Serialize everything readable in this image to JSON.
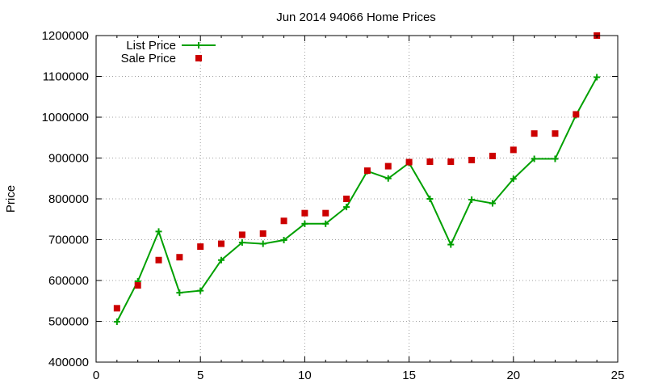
{
  "chart_data": {
    "type": "line",
    "title": "Jun 2014 94066 Home Prices",
    "xlabel": "",
    "ylabel": "Price",
    "xlim": [
      0,
      25
    ],
    "ylim": [
      400000,
      1200000
    ],
    "x_ticks": [
      0,
      5,
      10,
      15,
      20,
      25
    ],
    "y_ticks": [
      400000,
      500000,
      600000,
      700000,
      800000,
      900000,
      1000000,
      1100000,
      1200000
    ],
    "grid": true,
    "legend_position": "top-left",
    "series": [
      {
        "name": "List Price",
        "style": "line-with-plus-markers",
        "color": "#00a000",
        "x": [
          1,
          2,
          3,
          4,
          5,
          6,
          7,
          8,
          9,
          10,
          11,
          12,
          13,
          14,
          15,
          16,
          17,
          18,
          19,
          20,
          21,
          22,
          23,
          24
        ],
        "values": [
          499000,
          598000,
          720000,
          570000,
          575000,
          650000,
          693000,
          690000,
          699000,
          739000,
          739000,
          780000,
          868000,
          850000,
          888000,
          800000,
          688000,
          798000,
          789000,
          849000,
          898000,
          898000,
          1005000,
          1098000
        ]
      },
      {
        "name": "Sale Price",
        "style": "square-markers",
        "color": "#cc0000",
        "x": [
          1,
          2,
          3,
          4,
          5,
          6,
          7,
          8,
          9,
          10,
          11,
          12,
          13,
          14,
          15,
          16,
          17,
          18,
          19,
          20,
          21,
          22,
          23,
          24
        ],
        "values": [
          532000,
          588000,
          650000,
          657000,
          683000,
          690000,
          712000,
          715000,
          746000,
          765000,
          765000,
          800000,
          869000,
          880000,
          890000,
          891000,
          891000,
          895000,
          905000,
          920000,
          960000,
          960000,
          1007000,
          1200000
        ]
      }
    ]
  }
}
